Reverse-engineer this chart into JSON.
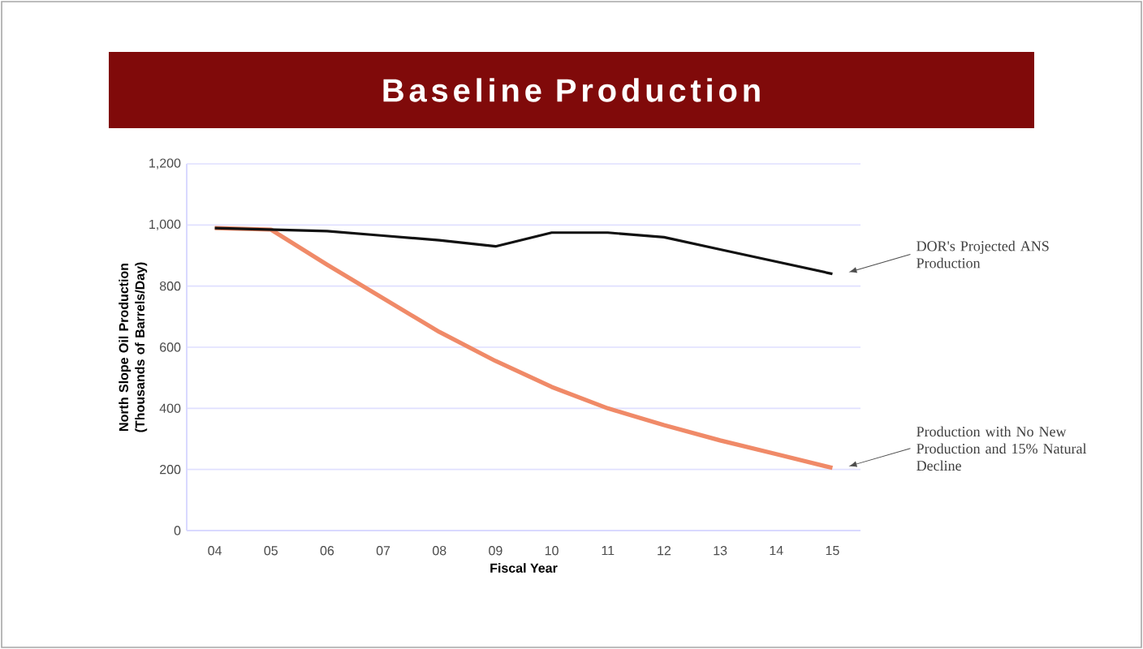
{
  "chart_data": {
    "type": "line",
    "title": "Baseline Production",
    "xlabel": "Fiscal Year",
    "ylabel": "North Slope Oil Production (Thousands of Barrels/Day)",
    "categories": [
      "04",
      "05",
      "06",
      "07",
      "08",
      "09",
      "10",
      "11",
      "12",
      "13",
      "14",
      "15"
    ],
    "series": [
      {
        "name": "DOR's Projected ANS Production",
        "color": "#111111",
        "values": [
          990,
          985,
          980,
          965,
          950,
          930,
          975,
          975,
          960,
          920,
          880,
          840
        ]
      },
      {
        "name": "Production with No New Production and 15% Natural Decline",
        "color": "#f08a68",
        "values": [
          990,
          985,
          870,
          760,
          650,
          555,
          470,
          400,
          345,
          295,
          250,
          205
        ]
      }
    ],
    "ylim": [
      0,
      1200
    ],
    "yticks": [
      0,
      200,
      400,
      600,
      800,
      {
        "value": 1000,
        "label": "1,000"
      },
      {
        "value": 1200,
        "label": "1,200"
      }
    ],
    "grid": "y",
    "legend": false,
    "marker": "none",
    "line_style": "solid"
  }
}
